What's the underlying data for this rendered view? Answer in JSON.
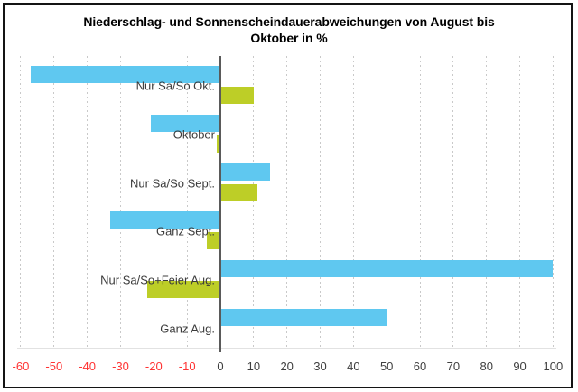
{
  "chart_data": {
    "type": "bar",
    "orientation": "horizontal",
    "title": "Niederschlag- und Sonnenscheindauerabweichungen von August bis Oktober in %",
    "categories": [
      "Nur Sa/So Okt.",
      "Oktober",
      "Nur Sa/So Sept.",
      "Ganz Sept.",
      "Nur Sa/So+Feier Aug.",
      "Ganz Aug."
    ],
    "series": [
      {
        "name": "blue-series",
        "color": "#5FC8F0",
        "values": [
          -57,
          -21,
          15,
          -33,
          100,
          50
        ]
      },
      {
        "name": "green-series",
        "color": "#BDCE27",
        "values": [
          10,
          -1,
          11,
          -4,
          -22,
          -0.5
        ]
      }
    ],
    "x_axis": {
      "min": -60,
      "max": 100,
      "step": 10,
      "ticks": [
        -60,
        -50,
        -40,
        -30,
        -20,
        -10,
        0,
        10,
        20,
        30,
        40,
        50,
        60,
        70,
        80,
        90,
        100
      ],
      "unit": "%"
    },
    "grid": "vertical-dotted",
    "legend": "none"
  },
  "colors": {
    "bar_blue": "#5FC8F0",
    "bar_green": "#BDCE27",
    "tick_positive": "#3F3F3F",
    "tick_negative": "#FF3333",
    "category_label": "#3B3B3B",
    "gridline": "#C9C9C9",
    "zero_axis": "#5A5A5A",
    "border": "#141414",
    "background": "#FFFFFF",
    "title": "#000000"
  }
}
